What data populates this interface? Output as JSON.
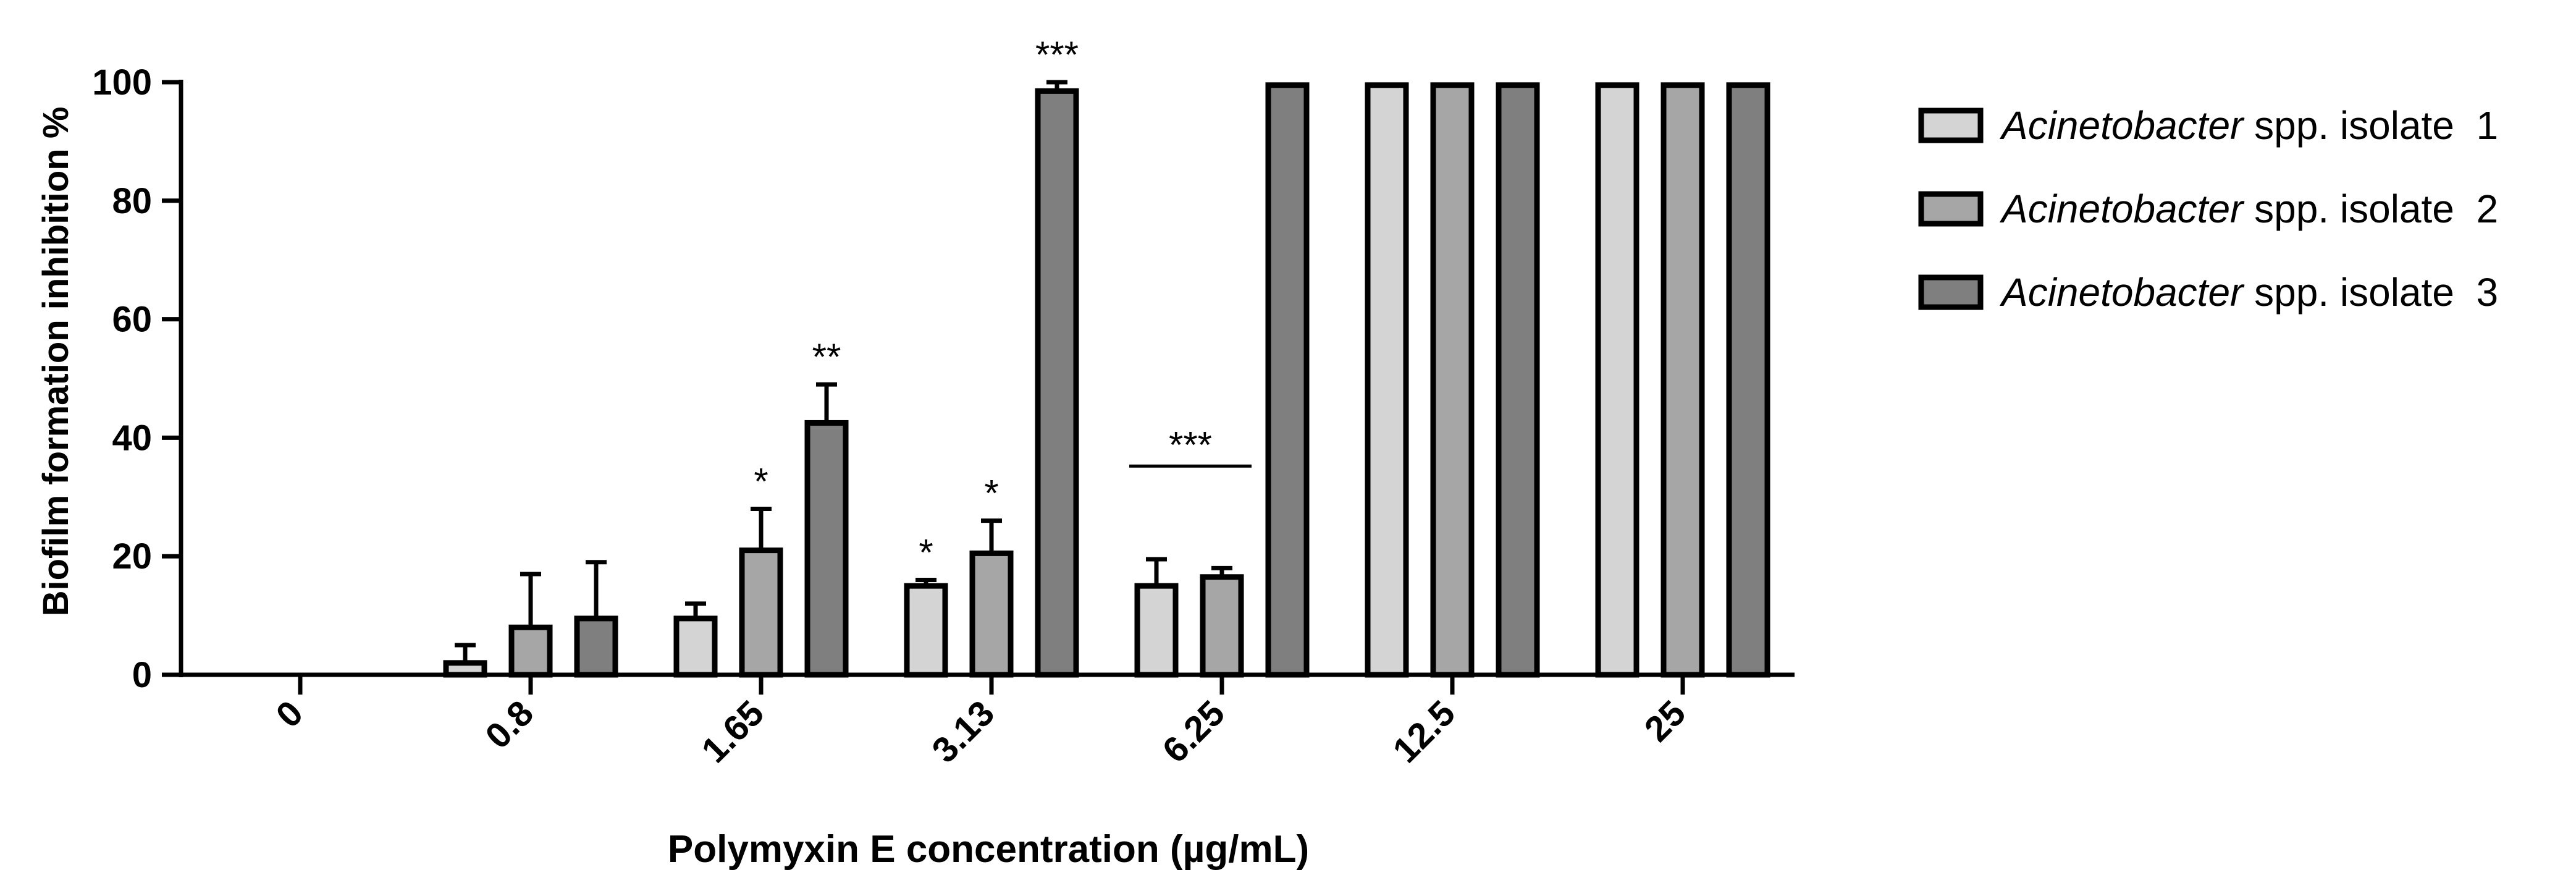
{
  "chart_data": {
    "type": "bar",
    "title": "",
    "xlabel": "Polymyxin E concentration (µg/mL)",
    "ylabel": "Biofilm formation inhibition %",
    "ylim": [
      0,
      100
    ],
    "yticks": [
      "0",
      "20",
      "40",
      "60",
      "80",
      "100"
    ],
    "categories": [
      "0",
      "0.8",
      "1.65",
      "3.13",
      "6.25",
      "12.5",
      "25"
    ],
    "series": [
      {
        "name": "Acinetobacter spp. isolate 1",
        "name_italic": "Acinetobacter",
        "name_rest": " spp. isolate  1",
        "color": "#d4d4d4",
        "values": [
          0,
          2,
          9.5,
          15,
          15,
          99.5,
          99.5
        ],
        "errors": [
          0,
          3,
          2.5,
          1,
          4.5,
          0,
          0
        ],
        "marks": [
          "",
          "",
          "",
          "*",
          "",
          "",
          ""
        ]
      },
      {
        "name": "Acinetobacter spp. isolate 2",
        "name_italic": "Acinetobacter",
        "name_rest": " spp. isolate  2",
        "color": "#a6a6a6",
        "values": [
          0,
          8,
          21,
          20.5,
          16.5,
          99.5,
          99.5
        ],
        "errors": [
          0,
          9,
          7,
          5.5,
          1.5,
          0,
          0
        ],
        "marks": [
          "",
          "",
          "*",
          "*",
          "",
          "",
          ""
        ]
      },
      {
        "name": "Acinetobacter spp. isolate 3",
        "name_italic": "Acinetobacter",
        "name_rest": " spp. isolate  3",
        "color": "#7f7f7f",
        "values": [
          0,
          9.5,
          42.5,
          98.5,
          99.5,
          99.5,
          99.5
        ],
        "errors": [
          0,
          9.5,
          6.5,
          1.5,
          0,
          0,
          0
        ],
        "marks": [
          "",
          "",
          "**",
          "***",
          "",
          "",
          ""
        ]
      }
    ],
    "annotations": [
      {
        "text": "***",
        "group": "6.25",
        "spans_series": [
          1,
          2
        ]
      }
    ]
  }
}
